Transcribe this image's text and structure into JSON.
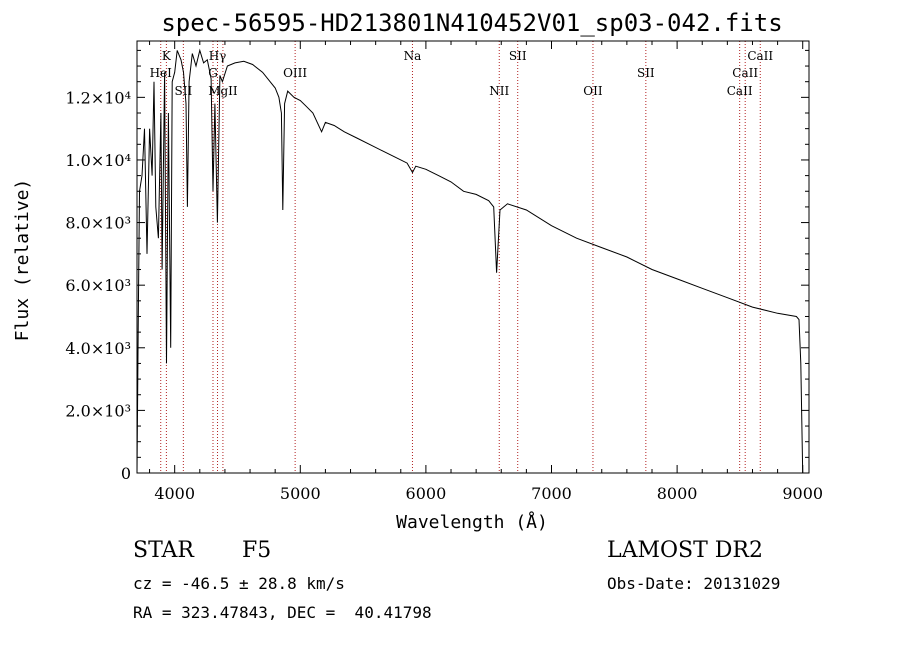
{
  "chart_data": {
    "type": "line",
    "title": "spec-56595-HD213801N410452V01_sp03-042.fits",
    "xlabel": "Wavelength (Å)",
    "ylabel": "Flux (relative)",
    "xlim": [
      3700,
      9050
    ],
    "ylim": [
      0,
      13800
    ],
    "x_ticks": [
      4000,
      5000,
      6000,
      7000,
      8000,
      9000
    ],
    "y_ticks": [
      {
        "value": 0,
        "label": "0"
      },
      {
        "value": 2000,
        "label": "2.0×10³"
      },
      {
        "value": 4000,
        "label": "4.0×10³"
      },
      {
        "value": 6000,
        "label": "6.0×10³"
      },
      {
        "value": 8000,
        "label": "8.0×10³"
      },
      {
        "value": 10000,
        "label": "1.0×10⁴"
      },
      {
        "value": 12000,
        "label": "1.2×10⁴"
      }
    ],
    "series": [
      {
        "x": [
          3700,
          3710,
          3720,
          3740,
          3760,
          3780,
          3800,
          3820,
          3835,
          3850,
          3870,
          3890,
          3900,
          3920,
          3935,
          3950,
          3968,
          3980,
          4000,
          4020,
          4050,
          4070,
          4090,
          4101,
          4115,
          4140,
          4170,
          4200,
          4230,
          4260,
          4290,
          4305,
          4320,
          4340,
          4360,
          4380,
          4420,
          4480,
          4550,
          4620,
          4700,
          4760,
          4800,
          4830,
          4850,
          4861,
          4875,
          4900,
          4950,
          5000,
          5050,
          5100,
          5170,
          5200,
          5270,
          5350,
          5450,
          5550,
          5650,
          5750,
          5850,
          5893,
          5920,
          6000,
          6100,
          6200,
          6300,
          6400,
          6500,
          6540,
          6563,
          6590,
          6650,
          6800,
          7000,
          7200,
          7400,
          7600,
          7800,
          8000,
          8200,
          8400,
          8600,
          8800,
          8950,
          8970,
          8985,
          9000
        ],
        "y": [
          0,
          5000,
          9000,
          9500,
          11000,
          7000,
          11000,
          9500,
          12500,
          8500,
          7500,
          11500,
          6500,
          12800,
          3500,
          11500,
          4000,
          12500,
          12800,
          13500,
          13200,
          12800,
          11800,
          8500,
          12500,
          13400,
          13000,
          13500,
          13100,
          13200,
          12600,
          9000,
          11800,
          8000,
          12700,
          12500,
          13000,
          13100,
          13150,
          13050,
          12800,
          12500,
          12300,
          12000,
          11500,
          8400,
          11800,
          12200,
          12000,
          11900,
          11700,
          11500,
          10900,
          11200,
          11100,
          10900,
          10700,
          10500,
          10300,
          10100,
          9900,
          9600,
          9800,
          9700,
          9500,
          9300,
          9000,
          8900,
          8700,
          8500,
          6400,
          8400,
          8600,
          8400,
          7900,
          7500,
          7200,
          6900,
          6500,
          6200,
          5900,
          5600,
          5300,
          5100,
          5000,
          4900,
          3500,
          0
        ]
      }
    ],
    "spectral_lines": [
      {
        "name": "K",
        "x": 3934,
        "row": 0
      },
      {
        "name": "HeI",
        "x": 3889,
        "row": 1
      },
      {
        "name": "SII",
        "x": 4069,
        "row": 2
      },
      {
        "name": "Hγ",
        "x": 4341,
        "row": 0
      },
      {
        "name": "G",
        "x": 4305,
        "row": 1
      },
      {
        "name": "MgII",
        "x": 4384,
        "row": 2
      },
      {
        "name": "OIII",
        "x": 4959,
        "row": 1
      },
      {
        "name": "Na",
        "x": 5893,
        "row": 0
      },
      {
        "name": "NII",
        "x": 6584,
        "row": 2
      },
      {
        "name": "SII",
        "x": 6731,
        "row": 0
      },
      {
        "name": "OII",
        "x": 7330,
        "row": 2
      },
      {
        "name": "SII",
        "x": 7751,
        "row": 1
      },
      {
        "name": "CaII",
        "x": 8498,
        "row": 2
      },
      {
        "name": "CaII",
        "x": 8542,
        "row": 1
      },
      {
        "name": "CaII",
        "x": 8662,
        "row": 0
      }
    ],
    "line_color": "#000000",
    "marker_color": "#b22222"
  },
  "info": {
    "object_class": "STAR",
    "subclass": "F5",
    "survey": "LAMOST DR2",
    "velocity": "cz = -46.5 ± 28.8 km/s",
    "obs_date": "Obs-Date: 20131029",
    "coords": "RA = 323.47843, DEC =  40.41798"
  }
}
